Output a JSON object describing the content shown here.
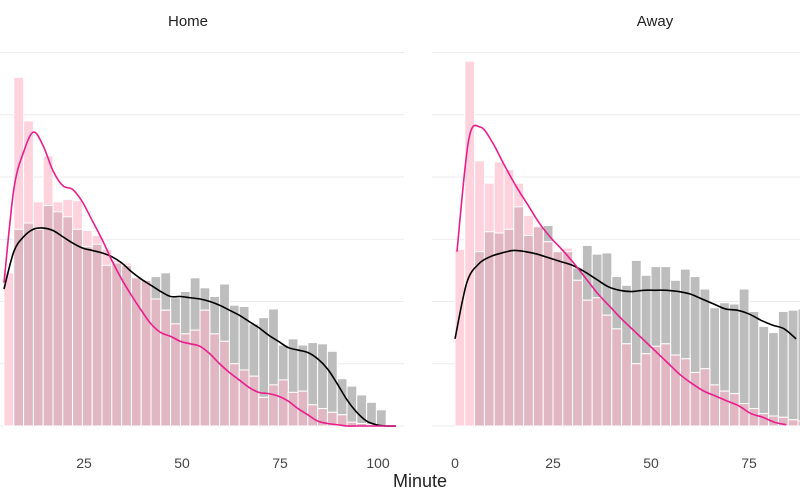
{
  "chart_data": {
    "type": "bar",
    "xlabel": "Minute",
    "ylabel": "",
    "xlim": [
      -5,
      105
    ],
    "ylim": [
      0,
      0.031
    ],
    "grid": true,
    "y_gridlines": [
      0,
      0.005,
      0.01,
      0.015,
      0.02,
      0.025,
      0.03
    ],
    "x_ticks": [
      25,
      50,
      75,
      100
    ],
    "bin_width": 2.5,
    "bin_starts": [
      0,
      2.5,
      5,
      7.5,
      10,
      12.5,
      15,
      17.5,
      20,
      22.5,
      25,
      27.5,
      30,
      32.5,
      35,
      37.5,
      40,
      42.5,
      45,
      47.5,
      50,
      52.5,
      55,
      57.5,
      60,
      62.5,
      65,
      67.5,
      70,
      72.5,
      75,
      77.5,
      80,
      82.5,
      85,
      87.5,
      90,
      92.5,
      95,
      97.5
    ],
    "colors": {
      "first_hist": "#bdbdbd",
      "first_curve": "#000000",
      "second_hist": "#ffd3dd",
      "second_curve": "#e91e8c",
      "overlap": "#e0b7c2"
    },
    "panels": [
      {
        "title": "Home",
        "x_tick_labels": [
          "25",
          "50",
          "75",
          "100"
        ],
        "series": [
          {
            "values": [
              0.0,
              0.0158,
              0.0163,
              0.0158,
              0.0177,
              0.0172,
              0.0168,
              0.0158,
              0.0144,
              0.0146,
              0.0129,
              0.0131,
              0.0129,
              0.0119,
              0.0117,
              0.012,
              0.0123,
              0.0103,
              0.0108,
              0.0119,
              0.0111,
              0.0104,
              0.0114,
              0.0097,
              0.0096,
              0.0082,
              0.0087,
              0.0094,
              0.0065,
              0.007,
              0.0065,
              0.0067,
              0.0066,
              0.006,
              0.0038,
              0.0032,
              0.0025,
              0.0019,
              0.0013,
              0.0
            ],
            "density": [
              0.011,
              0.014,
              0.0152,
              0.0158,
              0.0159,
              0.0157,
              0.0152,
              0.0147,
              0.0143,
              0.0141,
              0.0139,
              0.0136,
              0.0131,
              0.0124,
              0.0118,
              0.0113,
              0.0108,
              0.0104,
              0.0104,
              0.0103,
              0.0102,
              0.01,
              0.0097,
              0.0093,
              0.0089,
              0.0084,
              0.0079,
              0.0073,
              0.0068,
              0.0063,
              0.0061,
              0.0059,
              0.0054,
              0.0046,
              0.0034,
              0.0021,
              0.0011,
              0.0004,
              0.0001,
              0.0,
              0.0
            ],
            "density_x0": 0,
            "density_step": 2.5,
            "density_stop": 102
          },
          {
            "values": [
              0.0123,
              0.028,
              0.0245,
              0.018,
              0.0217,
              0.018,
              0.0182,
              0.0181,
              0.0157,
              0.0153,
              0.0142,
              0.0133,
              0.0131,
              0.012,
              0.0117,
              0.0102,
              0.0093,
              0.0082,
              0.0074,
              0.0077,
              0.0093,
              0.0074,
              0.0068,
              0.005,
              0.0045,
              0.004,
              0.0023,
              0.0033,
              0.0037,
              0.0027,
              0.0028,
              0.0017,
              0.0014,
              0.0011,
              0.0009,
              0.0003,
              0.0002,
              0.0001,
              0.0,
              0.0
            ],
            "density": [
              0.0115,
              0.019,
              0.022,
              0.0236,
              0.0225,
              0.0205,
              0.0193,
              0.019,
              0.018,
              0.0165,
              0.015,
              0.0133,
              0.0118,
              0.0105,
              0.0093,
              0.0082,
              0.0075,
              0.0072,
              0.0068,
              0.0066,
              0.0064,
              0.0058,
              0.005,
              0.0043,
              0.0037,
              0.0031,
              0.0027,
              0.0026,
              0.0024,
              0.002,
              0.0014,
              0.0009,
              0.0004,
              0.0002,
              0.0001,
              0.0,
              0.0,
              0.0,
              0.0,
              0.0,
              0.0
            ],
            "density_x0": 0,
            "density_step": 2.5,
            "density_stop": 100
          }
        ]
      },
      {
        "title": "Away",
        "x_tick_labels": [
          "0",
          "25",
          "50",
          "75"
        ],
        "series": [
          {
            "values": [
              0.0,
              0.0,
              0.014,
              0.0156,
              0.0155,
              0.0158,
              0.0176,
              0.0153,
              0.016,
              0.0161,
              0.0141,
              0.014,
              0.0127,
              0.0145,
              0.0138,
              0.0139,
              0.012,
              0.0113,
              0.0133,
              0.0121,
              0.0128,
              0.0128,
              0.0117,
              0.0126,
              0.012,
              0.011,
              0.0095,
              0.0099,
              0.0098,
              0.011,
              0.0092,
              0.008,
              0.0075,
              0.0092,
              0.0093,
              0.0094,
              0.0075,
              0.0,
              0.0,
              0.0
            ],
            "density": [
              0.007,
              0.0115,
              0.013,
              0.0136,
              0.0139,
              0.0141,
              0.014,
              0.0138,
              0.0135,
              0.0132,
              0.0129,
              0.0124,
              0.0118,
              0.0112,
              0.0109,
              0.0108,
              0.0109,
              0.0109,
              0.0109,
              0.0108,
              0.0106,
              0.0102,
              0.0098,
              0.0094,
              0.0093,
              0.009,
              0.0085,
              0.0081,
              0.0078,
              0.007
            ],
            "density_x0": 0,
            "density_step": 3,
            "density_stop": 87
          },
          {
            "values": [
              0.0142,
              0.0293,
              0.0213,
              0.0195,
              0.0212,
              0.0206,
              0.0195,
              0.0169,
              0.0161,
              0.0148,
              0.014,
              0.0143,
              0.0117,
              0.0101,
              0.0103,
              0.0089,
              0.0078,
              0.0066,
              0.005,
              0.0058,
              0.0064,
              0.0066,
              0.0057,
              0.0054,
              0.0043,
              0.0046,
              0.0033,
              0.0028,
              0.0026,
              0.0018,
              0.0014,
              0.001,
              0.0008,
              0.0007,
              0.0005,
              0.0004,
              0.0003,
              0.0,
              0.0,
              0.0
            ],
            "density": [
              0.014,
              0.023,
              0.024,
              0.0228,
              0.021,
              0.0193,
              0.0178,
              0.0163,
              0.0151,
              0.0141,
              0.013,
              0.0118,
              0.0106,
              0.0096,
              0.0086,
              0.0077,
              0.0068,
              0.0059,
              0.005,
              0.0041,
              0.0034,
              0.0028,
              0.0024,
              0.002,
              0.0016,
              0.001,
              0.0007,
              0.0003,
              0.0001
            ],
            "density_x0": 0.5,
            "density_step": 3,
            "density_stop": 88
          }
        ]
      }
    ]
  }
}
